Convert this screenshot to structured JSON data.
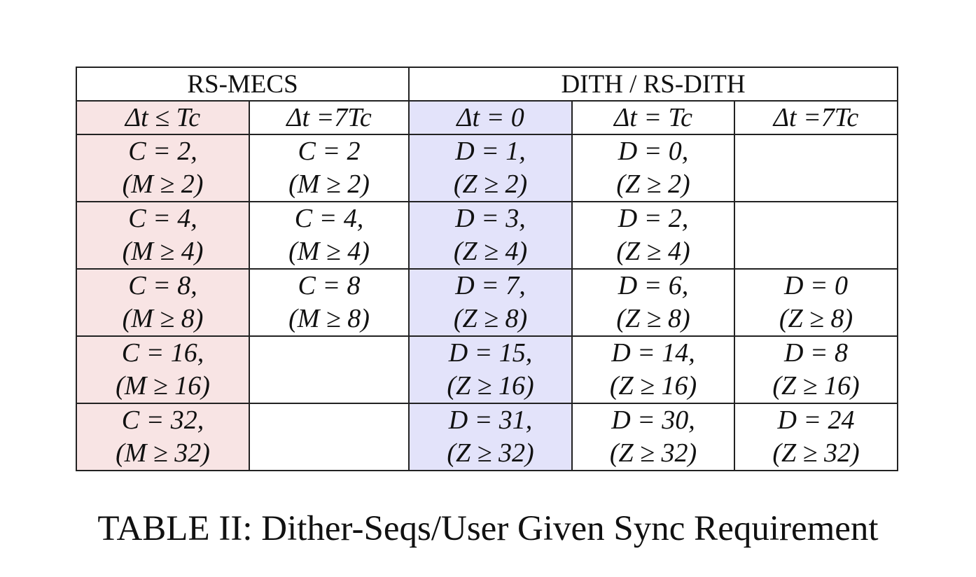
{
  "table": {
    "groups": [
      {
        "label": "RS-MECS",
        "span": 2
      },
      {
        "label": "DITH / RS-DITH",
        "span": 3
      }
    ],
    "columns": [
      {
        "label": "Δt ≤ Tc",
        "bg": "#f8e4e4"
      },
      {
        "label": "Δt =7Tc",
        "bg": ""
      },
      {
        "label": "Δt = 0",
        "bg": "#e3e3fa"
      },
      {
        "label": "Δt = Tc",
        "bg": ""
      },
      {
        "label": "Δt =7Tc",
        "bg": ""
      }
    ],
    "rows": [
      [
        [
          "C = 2,",
          "(M ≥ 2)"
        ],
        [
          "C = 2",
          "(M ≥ 2)"
        ],
        [
          "D = 1,",
          "(Z ≥ 2)"
        ],
        [
          "D = 0,",
          "(Z ≥ 2)"
        ],
        []
      ],
      [
        [
          "C = 4,",
          "(M ≥ 4)"
        ],
        [
          "C = 4,",
          "(M ≥ 4)"
        ],
        [
          "D = 3,",
          "(Z ≥ 4)"
        ],
        [
          "D = 2,",
          "(Z ≥ 4)"
        ],
        []
      ],
      [
        [
          "C = 8,",
          "(M ≥ 8)"
        ],
        [
          "C = 8",
          "(M ≥ 8)"
        ],
        [
          "D = 7,",
          "(Z ≥ 8)"
        ],
        [
          "D = 6,",
          "(Z ≥ 8)"
        ],
        [
          "D = 0",
          "(Z ≥ 8)"
        ]
      ],
      [
        [
          "C = 16,",
          "(M ≥ 16)"
        ],
        [],
        [
          "D = 15,",
          "(Z ≥ 16)"
        ],
        [
          "D = 14,",
          "(Z ≥ 16)"
        ],
        [
          "D = 8",
          "(Z ≥ 16)"
        ]
      ],
      [
        [
          "C = 32,",
          "(M ≥ 32)"
        ],
        [],
        [
          "D = 31,",
          "(Z ≥ 32)"
        ],
        [
          "D = 30,",
          "(Z ≥ 32)"
        ],
        [
          "D = 24",
          "(Z ≥ 32)"
        ]
      ]
    ]
  },
  "caption": "TABLE II: Dither-Seqs/User Given Sync Requirement"
}
